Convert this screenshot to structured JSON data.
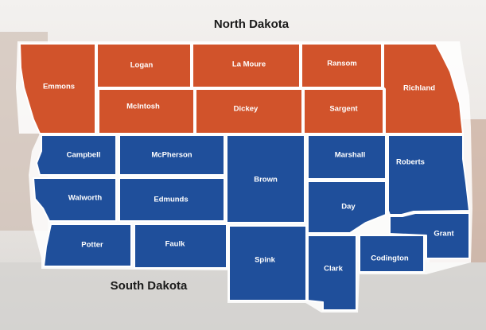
{
  "states": [
    {
      "name": "North Dakota",
      "counties": [
        "Emmons",
        "Logan",
        "La Moure",
        "Ransom",
        "Richland",
        "McIntosh",
        "Dickey",
        "Sargent"
      ]
    },
    {
      "name": "South Dakota",
      "counties": [
        "Campbell",
        "McPherson",
        "Brown",
        "Marshall",
        "Roberts",
        "Walworth",
        "Edmunds",
        "Day",
        "Grant",
        "Potter",
        "Faulk",
        "Spink",
        "Clark",
        "Codington"
      ]
    }
  ]
}
